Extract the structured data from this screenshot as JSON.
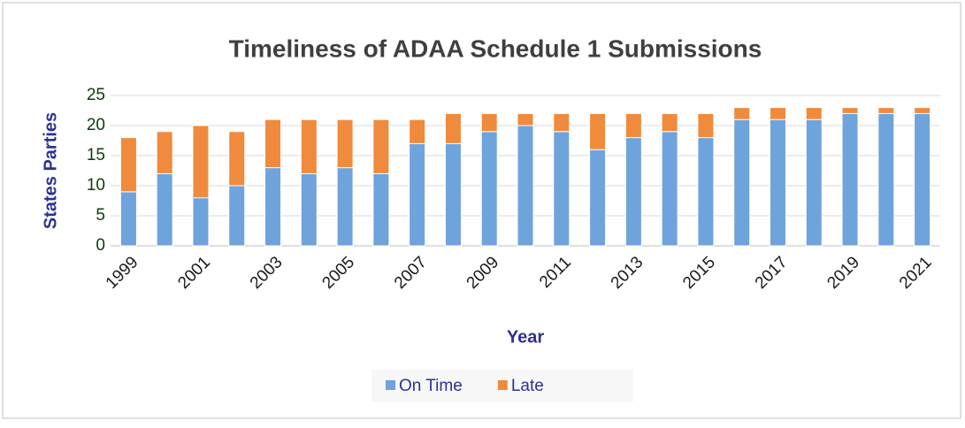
{
  "chart_data": {
    "type": "stacked_bar",
    "title": "Timeliness of ADAA Schedule 1 Submissions",
    "x_label": "Year",
    "y_label": "States Parties",
    "categories": [
      "1999",
      null,
      "2001",
      null,
      "2003",
      null,
      "2005",
      null,
      "2007",
      null,
      "2009",
      null,
      "2011",
      null,
      "2013",
      null,
      "2015",
      null,
      "2017",
      null,
      "2019",
      null,
      "2021"
    ],
    "series": [
      {
        "name": "On Time",
        "color": "#6fa3dc",
        "values": [
          9,
          12,
          8,
          10,
          13,
          12,
          13,
          12,
          17,
          17,
          19,
          20,
          19,
          16,
          18,
          19,
          18,
          21,
          21,
          21,
          22,
          22,
          22
        ]
      },
      {
        "name": "Late",
        "color": "#f08a3c",
        "values": [
          9,
          7,
          12,
          9,
          8,
          9,
          8,
          9,
          4,
          5,
          3,
          2,
          3,
          6,
          4,
          3,
          4,
          2,
          2,
          2,
          1,
          1,
          1
        ]
      }
    ],
    "ylim": [
      0,
      25
    ],
    "yticks": [
      0,
      5,
      10,
      15,
      20,
      25
    ],
    "grid": true,
    "legend": "bottom"
  }
}
